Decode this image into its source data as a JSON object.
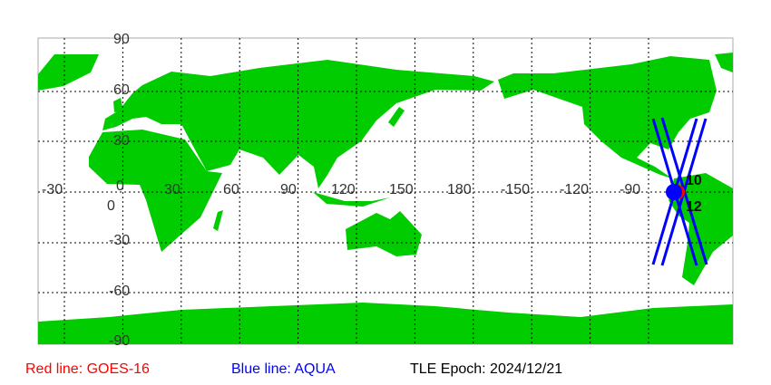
{
  "map": {
    "land_color": "#00cc00",
    "lat_labels": [
      "90",
      "60",
      "30",
      "0",
      "-30",
      "-60",
      "-90"
    ],
    "lon_labels": [
      "-30",
      "0",
      "30",
      "60",
      "90",
      "120",
      "150",
      "180",
      "-150",
      "-120",
      "-90"
    ],
    "satellites": [
      {
        "name": "GOES-16",
        "color": "#ff0000",
        "label": "12"
      },
      {
        "name": "AQUA",
        "color": "#0000ff",
        "label": "10"
      }
    ]
  },
  "legend": {
    "red": "Red line: GOES-16",
    "blue": "Blue line: AQUA",
    "epoch": "TLE Epoch: 2024/12/21"
  }
}
